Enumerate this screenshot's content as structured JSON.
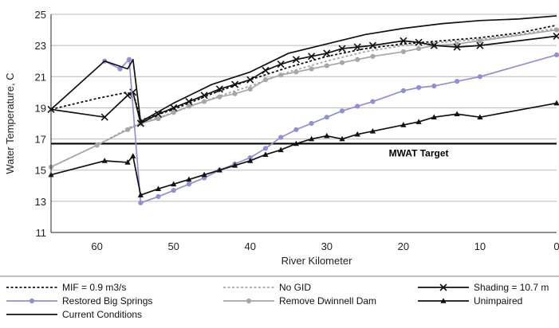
{
  "chart_data": {
    "type": "line",
    "xlabel": "River Kilometer",
    "ylabel": "Water Temperature, C",
    "xlim": [
      66,
      0
    ],
    "ylim": [
      11,
      25
    ],
    "xticks": [
      60,
      50,
      40,
      30,
      20,
      10,
      0
    ],
    "yticks": [
      11,
      13,
      15,
      17,
      19,
      21,
      23,
      25
    ],
    "grid": "horizontal",
    "legend_position": "bottom",
    "annotations": [
      {
        "text": "MWAT Target",
        "x": 18,
        "y": 16.7
      }
    ],
    "reference_lines": [
      {
        "name": "MWAT Target",
        "y": 16.7,
        "color": "#000000"
      }
    ],
    "series": [
      {
        "name": "MIF = 0.9 m3/s",
        "color": "#111111",
        "style": "dotted",
        "marker": "none",
        "x": [
          66,
          60,
          56,
          55,
          54.3,
          50,
          45,
          40,
          35,
          30,
          25,
          20,
          15,
          10,
          5,
          0
        ],
        "y": [
          18.9,
          19.6,
          20.0,
          19.5,
          18.2,
          18.9,
          19.9,
          20.8,
          21.6,
          22.3,
          22.8,
          23.1,
          23.3,
          23.5,
          23.8,
          24.3
        ]
      },
      {
        "name": "No GID",
        "color": "#a6a6a6",
        "style": "dotted",
        "marker": "none",
        "x": [
          66,
          60,
          55.5,
          54.3,
          50,
          45,
          40,
          35,
          30,
          25,
          20,
          15,
          10,
          5,
          0
        ],
        "y": [
          15.2,
          16.6,
          17.8,
          18.0,
          18.7,
          19.6,
          20.4,
          21.3,
          22.0,
          22.6,
          23.0,
          23.2,
          23.4,
          23.7,
          24.1
        ]
      },
      {
        "name": "Shading = 10.7 m",
        "color": "#111111",
        "style": "solid",
        "marker": "x",
        "x": [
          66,
          59,
          56,
          55.3,
          54.3,
          52,
          50,
          48,
          46,
          44,
          42,
          40,
          38,
          36,
          34,
          32,
          30,
          28,
          26,
          24,
          20,
          18,
          16,
          13,
          10,
          0
        ],
        "y": [
          18.9,
          18.4,
          19.8,
          20.0,
          18.0,
          18.6,
          19.0,
          19.4,
          19.8,
          20.2,
          20.5,
          20.8,
          21.4,
          21.8,
          22.1,
          22.3,
          22.5,
          22.8,
          22.9,
          23.0,
          23.3,
          23.2,
          23.0,
          22.9,
          23.0,
          23.6
        ]
      },
      {
        "name": "Restored Big Springs",
        "color": "#8f8fd6",
        "style": "solid",
        "marker": "circle",
        "x": [
          59,
          57,
          55.8,
          54.3,
          52,
          50,
          48,
          46,
          44,
          42,
          40,
          38,
          36,
          34,
          32,
          30,
          28,
          26,
          24,
          20,
          18,
          16,
          13,
          10,
          0
        ],
        "y": [
          22.0,
          21.5,
          22.1,
          12.9,
          13.3,
          13.7,
          14.1,
          14.5,
          15.0,
          15.4,
          15.8,
          16.4,
          17.1,
          17.6,
          18.0,
          18.4,
          18.8,
          19.1,
          19.4,
          20.1,
          20.3,
          20.4,
          20.7,
          21.0,
          22.4
        ]
      },
      {
        "name": "Remove Dwinnell Dam",
        "color": "#a6a6a6",
        "style": "solid",
        "marker": "circle",
        "x": [
          66,
          60,
          56,
          54.3,
          52,
          50,
          48,
          46,
          44,
          42,
          40,
          38,
          36,
          34,
          32,
          30,
          28,
          26,
          24,
          20,
          18,
          16,
          13,
          10,
          0
        ],
        "y": [
          15.2,
          16.6,
          17.6,
          18.0,
          18.3,
          18.7,
          19.1,
          19.4,
          19.7,
          19.9,
          20.2,
          20.8,
          21.1,
          21.3,
          21.5,
          21.7,
          21.9,
          22.1,
          22.3,
          22.6,
          22.8,
          23.0,
          23.1,
          23.3,
          24.0
        ]
      },
      {
        "name": "Unimpaired",
        "color": "#111111",
        "style": "solid",
        "marker": "triangle",
        "x": [
          66,
          59,
          56,
          55.3,
          54.3,
          52,
          50,
          48,
          46,
          44,
          42,
          40,
          38,
          36,
          34,
          32,
          30,
          28,
          26,
          24,
          20,
          18,
          16,
          13,
          10,
          0
        ],
        "y": [
          14.7,
          15.6,
          15.5,
          15.9,
          13.4,
          13.8,
          14.1,
          14.4,
          14.7,
          15.0,
          15.3,
          15.6,
          16.0,
          16.3,
          16.7,
          17.0,
          17.2,
          17.0,
          17.3,
          17.5,
          17.9,
          18.1,
          18.4,
          18.6,
          18.4,
          19.3
        ]
      },
      {
        "name": "Current Conditions",
        "color": "#111111",
        "style": "solid",
        "marker": "none",
        "x": [
          66,
          59,
          56,
          55.3,
          54.3,
          50,
          45,
          40,
          35,
          30,
          25,
          20,
          15,
          10,
          5,
          0
        ],
        "y": [
          18.9,
          22.0,
          21.5,
          22.1,
          18.1,
          19.3,
          20.5,
          21.3,
          22.5,
          23.1,
          23.7,
          24.1,
          24.4,
          24.6,
          24.7,
          24.9
        ]
      }
    ]
  }
}
